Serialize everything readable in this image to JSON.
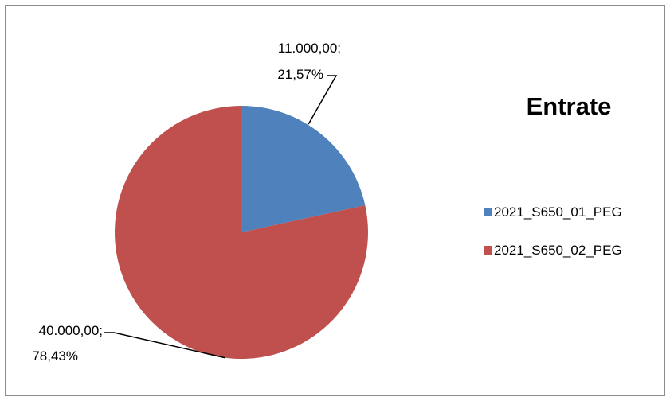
{
  "chart_data": {
    "type": "pie",
    "title": "Entrate",
    "categories": [
      "2021_S650_01_PEG",
      "2021_S650_02_PEG"
    ],
    "values": [
      11000,
      40000
    ],
    "percentages": [
      21.57,
      78.43
    ],
    "colors": [
      "#4F81BD",
      "#C0504D"
    ],
    "data_labels": [
      {
        "value_text": "11.000,00;",
        "percent_text": "21,57%"
      },
      {
        "value_text": "40.000,00;",
        "percent_text": "78,43%"
      }
    ],
    "legend_position": "right"
  }
}
